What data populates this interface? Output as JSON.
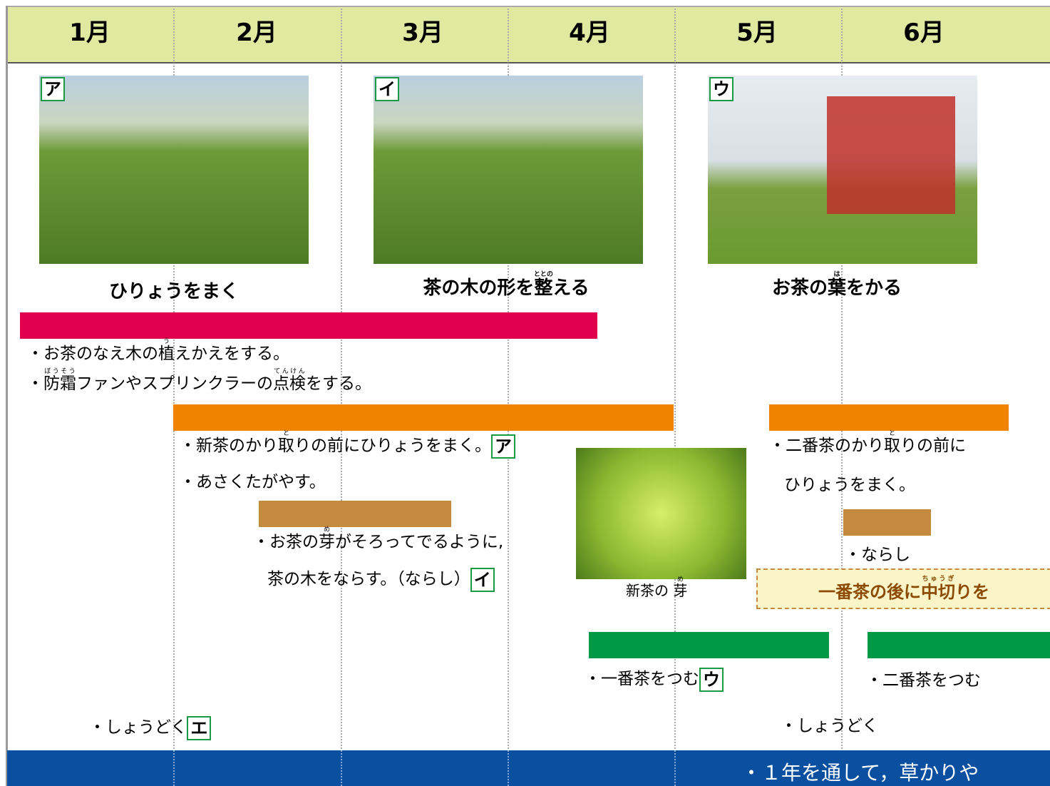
{
  "header": {
    "months": [
      "1月",
      "2月",
      "3月",
      "4月",
      "5月",
      "6月"
    ]
  },
  "photos": [
    {
      "badge": "ア",
      "caption": {
        "before": "ひりょうをまく",
        "base": "",
        "ruby": "",
        "after": ""
      }
    },
    {
      "badge": "イ",
      "caption": {
        "before": "茶の木の形を",
        "base": "整",
        "ruby": "ととの",
        "after": "える"
      }
    },
    {
      "badge": "ウ",
      "caption": {
        "before": "お茶の",
        "base": "葉",
        "ruby": "は",
        "after": "をかる"
      }
    }
  ],
  "notes": {
    "n1": {
      "before": "・お茶のなえ木の",
      "base": "植",
      "ruby": "う",
      "after": "えかえをする。"
    },
    "n2": {
      "b1": "防霜",
      "r1": "ぼうそう",
      "pre": "・",
      "mid": "ファンやスプリンクラーの",
      "b2": "点検",
      "r2": "てんけん",
      "after": "をする。"
    },
    "n3": {
      "before": "・新茶のかり",
      "base": "取",
      "ruby": "と",
      "after": "りの前にひりょうをまく。",
      "badge": "ア"
    },
    "n4": "・あさくたがやす。",
    "n5": {
      "before": "・お茶の",
      "base": "芽",
      "ruby": "め",
      "after": "がそろってでるように,",
      "line2": "茶の木をならす。（ならし）",
      "badge": "イ"
    },
    "sprout": {
      "before": "新茶の ",
      "base": "芽",
      "ruby": "め"
    },
    "n6": {
      "before": "・二番茶のかり",
      "base": "取",
      "ruby": "と",
      "after": "りの前に",
      "line2": "ひりょうをまく。"
    },
    "n7": "・ならし",
    "box": {
      "before": "一番茶の後に",
      "base": "中切",
      "ruby": "ちゅうぎ",
      "after": "りを"
    },
    "n8": {
      "text": "・一番茶をつむ",
      "badge": "ウ"
    },
    "n9": "・二番茶をつむ",
    "n10": {
      "text": "・しょうどく",
      "badge": "エ"
    },
    "n11": "・しょうどく",
    "footer": "・１年を通して，草かりや"
  }
}
